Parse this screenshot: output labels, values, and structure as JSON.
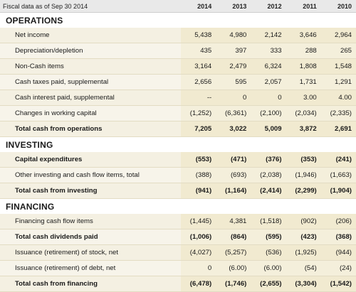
{
  "header": {
    "title": "Fiscal data as of Sep 30 2014",
    "years": [
      "2014",
      "2013",
      "2012",
      "2011",
      "2010"
    ]
  },
  "sections": [
    {
      "title": "OPERATIONS",
      "rows": [
        {
          "label": "Net income",
          "values": [
            "5,438",
            "4,980",
            "2,142",
            "3,646",
            "2,964"
          ],
          "bold": false
        },
        {
          "label": "Depreciation/depletion",
          "values": [
            "435",
            "397",
            "333",
            "288",
            "265"
          ],
          "bold": false
        },
        {
          "label": "Non-Cash items",
          "values": [
            "3,164",
            "2,479",
            "6,324",
            "1,808",
            "1,548"
          ],
          "bold": false
        },
        {
          "label": "Cash taxes paid, supplemental",
          "values": [
            "2,656",
            "595",
            "2,057",
            "1,731",
            "1,291"
          ],
          "bold": false
        },
        {
          "label": "Cash interest paid, supplemental",
          "values": [
            "--",
            "0",
            "0",
            "3.00",
            "4.00"
          ],
          "bold": false
        },
        {
          "label": "Changes in working capital",
          "values": [
            "(1,252)",
            "(6,361)",
            "(2,100)",
            "(2,034)",
            "(2,335)"
          ],
          "bold": false
        },
        {
          "label": "Total cash from operations",
          "values": [
            "7,205",
            "3,022",
            "5,009",
            "3,872",
            "2,691"
          ],
          "bold": true
        }
      ]
    },
    {
      "title": "INVESTING",
      "rows": [
        {
          "label": "Capital expenditures",
          "values": [
            "(553)",
            "(471)",
            "(376)",
            "(353)",
            "(241)"
          ],
          "bold": true
        },
        {
          "label": "Other investing and cash flow items, total",
          "values": [
            "(388)",
            "(693)",
            "(2,038)",
            "(1,946)",
            "(1,663)"
          ],
          "bold": false
        },
        {
          "label": "Total cash from investing",
          "values": [
            "(941)",
            "(1,164)",
            "(2,414)",
            "(2,299)",
            "(1,904)"
          ],
          "bold": true
        }
      ]
    },
    {
      "title": "FINANCING",
      "rows": [
        {
          "label": "Financing cash flow items",
          "values": [
            "(1,445)",
            "4,381",
            "(1,518)",
            "(902)",
            "(206)"
          ],
          "bold": false
        },
        {
          "label": "Total cash dividends paid",
          "values": [
            "(1,006)",
            "(864)",
            "(595)",
            "(423)",
            "(368)"
          ],
          "bold": true
        },
        {
          "label": "Issuance (retirement) of stock, net",
          "values": [
            "(4,027)",
            "(5,257)",
            "(536)",
            "(1,925)",
            "(944)"
          ],
          "bold": false
        },
        {
          "label": "Issuance (retirement) of debt, net",
          "values": [
            "0",
            "(6.00)",
            "(6.00)",
            "(54)",
            "(24)"
          ],
          "bold": false
        },
        {
          "label": "Total cash from financing",
          "values": [
            "(6,478)",
            "(1,746)",
            "(2,655)",
            "(3,304)",
            "(1,542)"
          ],
          "bold": true
        }
      ]
    }
  ]
}
